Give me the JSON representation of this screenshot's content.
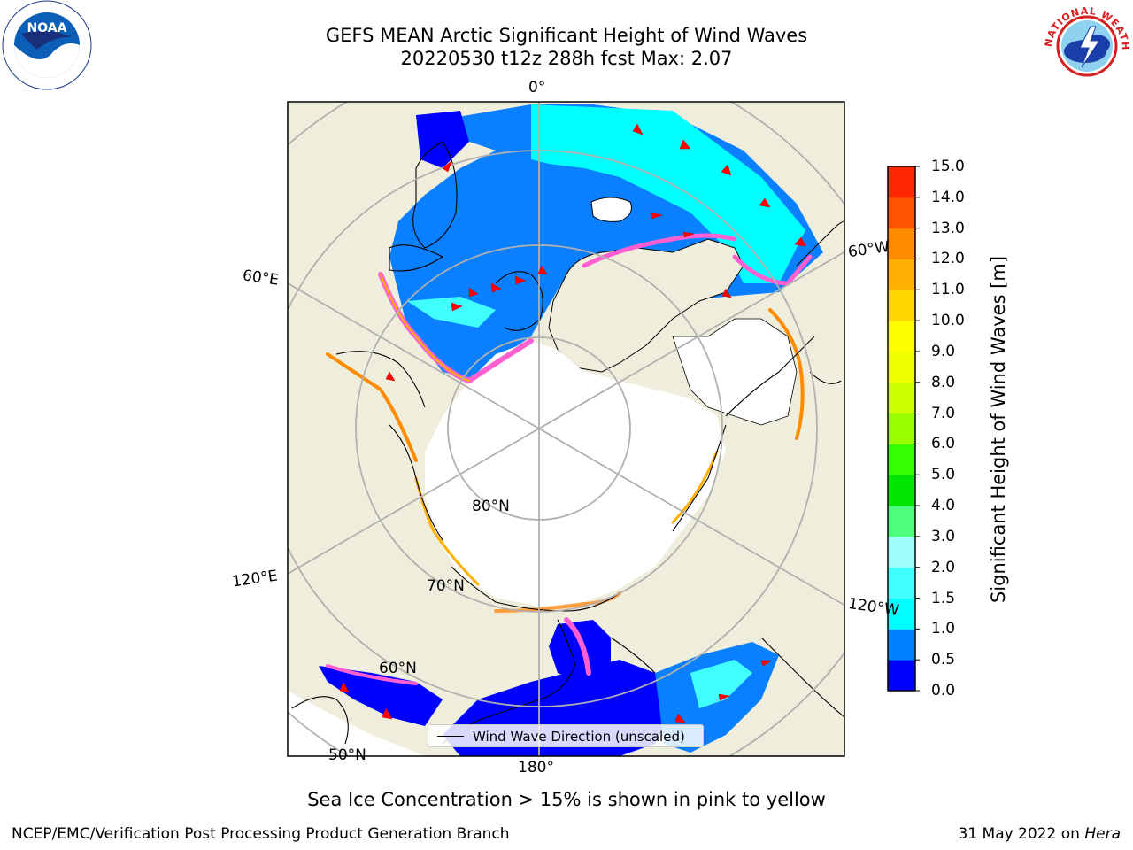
{
  "header": {
    "title_line1": "GEFS MEAN Arctic Significant Height of Wind Waves",
    "title_line2": "20220530 t12z 288h fcst   Max: 2.07"
  },
  "logos": {
    "left": "noaa-logo",
    "right": "nws-logo",
    "left_text": "NOAA",
    "right_text": "NATIONAL WEATHER SERVICE"
  },
  "map": {
    "projection": "north-polar-stereographic",
    "longitude_labels": [
      "0°",
      "60°E",
      "120°E",
      "180°",
      "120°W",
      "60°W"
    ],
    "latitude_labels": [
      "80°N",
      "70°N",
      "60°N",
      "50°N"
    ],
    "colors": {
      "land": "#efeedc",
      "ice": "#ffffff",
      "coast": "#000000",
      "grid": "#b0b0b0",
      "arrow": "#ff0000"
    }
  },
  "colorbar": {
    "title": "Significant Height of Wind Waves [m]",
    "ticks": [
      "0.0",
      "0.5",
      "1.0",
      "1.5",
      "2.0",
      "3.0",
      "4.0",
      "5.0",
      "6.0",
      "7.0",
      "8.0",
      "9.0",
      "10.0",
      "11.0",
      "12.0",
      "13.0",
      "14.0",
      "15.0"
    ],
    "colors": [
      "#0000ff",
      "#007fff",
      "#00ffff",
      "#3fffff",
      "#9fffff",
      "#4fff7f",
      "#00e600",
      "#33ff00",
      "#99ff00",
      "#ccff00",
      "#eeff00",
      "#ffff00",
      "#ffd700",
      "#ffb000",
      "#ff8c00",
      "#ff5500",
      "#ff2600"
    ]
  },
  "legend": {
    "label": "Wind Wave Direction (unscaled)"
  },
  "caption": "Sea Ice Concentration > 15% is shown in pink to yellow",
  "footer": {
    "left": "NCEP/EMC/Verification Post Processing Product Generation Branch",
    "right_prefix": "31 May 2022 on ",
    "right_machine": "Hera"
  }
}
